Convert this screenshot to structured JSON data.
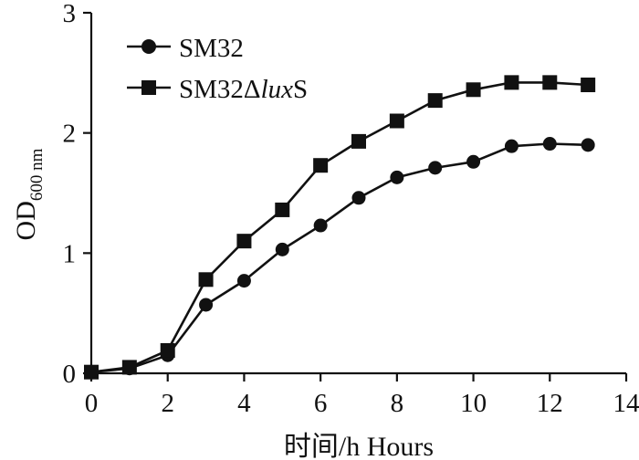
{
  "chart_data": {
    "type": "line",
    "title": "",
    "xlabel": "时间/h Hours",
    "ylabel": {
      "main": "OD",
      "subscript": "600 nm"
    },
    "xlim": [
      0,
      14
    ],
    "ylim": [
      0,
      3
    ],
    "xticks": [
      0,
      2,
      4,
      6,
      8,
      10,
      12,
      14
    ],
    "yticks": [
      0,
      1,
      2,
      3
    ],
    "x": [
      0,
      1,
      2,
      3,
      4,
      5,
      6,
      7,
      8,
      9,
      10,
      11,
      12,
      13
    ],
    "series": [
      {
        "name": "SM32",
        "marker": "circle",
        "values": [
          0.01,
          0.04,
          0.15,
          0.57,
          0.77,
          1.03,
          1.23,
          1.46,
          1.63,
          1.71,
          1.76,
          1.89,
          1.91,
          1.9
        ]
      },
      {
        "name": "SM32ΔluxS",
        "name_parts": [
          "SM32Δ",
          "lux",
          "S"
        ],
        "marker": "square",
        "values": [
          0.01,
          0.05,
          0.19,
          0.78,
          1.1,
          1.36,
          1.73,
          1.93,
          2.1,
          2.27,
          2.36,
          2.42,
          2.42,
          2.4
        ]
      }
    ],
    "legend_position": "top-left",
    "grid": false,
    "color": "#111111"
  }
}
